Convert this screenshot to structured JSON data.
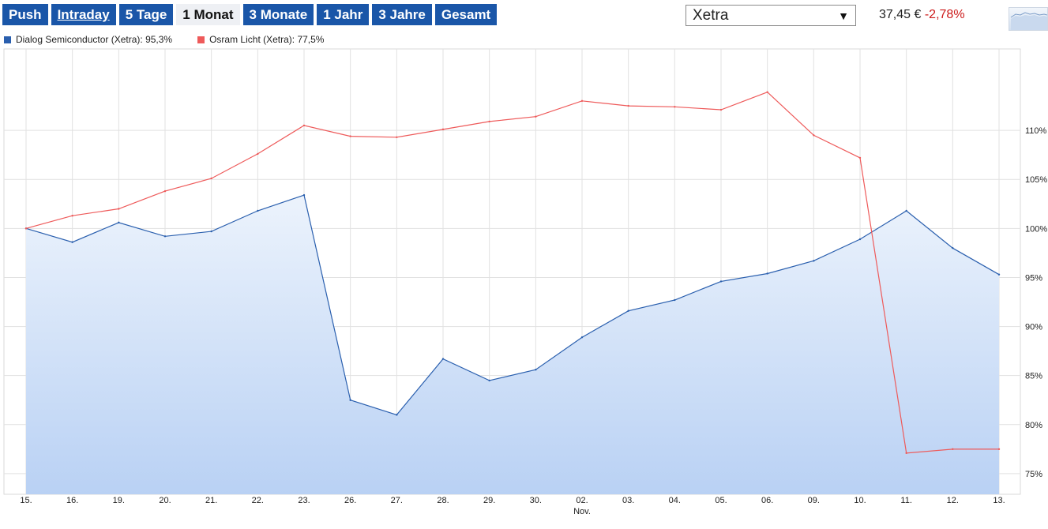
{
  "tabs": [
    {
      "label": "Push",
      "active": false,
      "underline": false
    },
    {
      "label": "Intraday",
      "active": false,
      "underline": true
    },
    {
      "label": "5 Tage",
      "active": false,
      "underline": false
    },
    {
      "label": "1 Monat",
      "active": true,
      "underline": false
    },
    {
      "label": "3 Monate",
      "active": false,
      "underline": false
    },
    {
      "label": "1 Jahr",
      "active": false,
      "underline": false
    },
    {
      "label": "3 Jahre",
      "active": false,
      "underline": false
    },
    {
      "label": "Gesamt",
      "active": false,
      "underline": false
    }
  ],
  "market_select": {
    "value": "Xetra",
    "arrow": "▼"
  },
  "quote": {
    "price": "37,45 €",
    "change": "-2,78%"
  },
  "colors": {
    "accent": "#1a56a8",
    "series1": "#2a5fae",
    "series2": "#ee5a5a",
    "negative": "#cc1a1a"
  },
  "legend": [
    {
      "label": "Dialog Semiconductor (Xetra): 95,3%",
      "color": "#2a5fae"
    },
    {
      "label": "Osram Licht (Xetra): 77,5%",
      "color": "#ee5a5a"
    }
  ],
  "chart_data": {
    "type": "line",
    "categories": [
      "15.",
      "16.",
      "19.",
      "20.",
      "21.",
      "22.",
      "23.",
      "26.",
      "27.",
      "28.",
      "29.",
      "30.",
      "02.",
      "03.",
      "04.",
      "05.",
      "06.",
      "09.",
      "10.",
      "11.",
      "12.",
      "13."
    ],
    "x_sub_labels": [
      {
        "index": 12,
        "text": "Nov."
      }
    ],
    "y_ticks": [
      75,
      80,
      85,
      90,
      95,
      100,
      105,
      110
    ],
    "y_tick_suffix": "%",
    "ylim": [
      72.9,
      118.3
    ],
    "grid": true,
    "legend_position": "top-left",
    "y_axis_position": "right",
    "series": [
      {
        "name": "Dialog Semiconductor (Xetra)",
        "color": "#2a5fae",
        "area": true,
        "values": [
          100.0,
          98.6,
          100.6,
          99.2,
          99.7,
          101.8,
          103.4,
          82.5,
          81.0,
          86.7,
          84.5,
          85.6,
          88.9,
          91.6,
          92.7,
          94.6,
          95.4,
          96.7,
          98.9,
          101.8,
          98.0,
          95.3
        ]
      },
      {
        "name": "Osram Licht (Xetra)",
        "color": "#ee5a5a",
        "area": false,
        "values": [
          100.0,
          101.3,
          102.0,
          103.8,
          105.1,
          107.6,
          110.5,
          109.4,
          109.3,
          110.1,
          110.9,
          111.4,
          113.0,
          112.5,
          112.4,
          112.1,
          113.9,
          109.5,
          107.2,
          77.1,
          77.5,
          77.5
        ]
      }
    ]
  }
}
